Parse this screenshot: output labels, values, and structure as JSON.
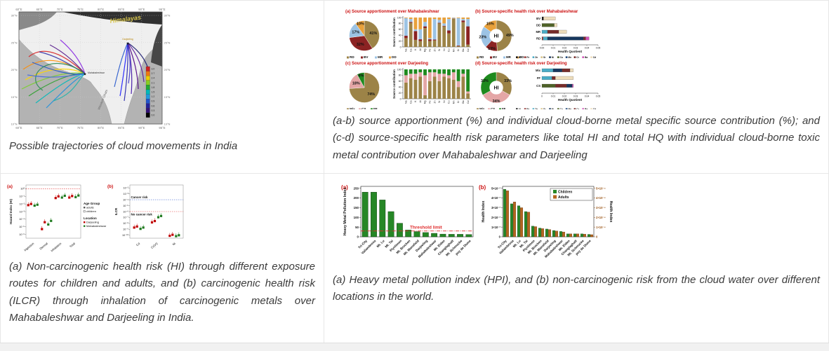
{
  "captions": {
    "map": "Possible trajectories of cloud movements in India",
    "source": "(a-b) source apportionment (%) and individual cloud-borne metal specific source contribution (%); and (c-d) source-specific health risk parameters like total HI and total HQ with individual cloud-borne toxic metal contribution over Mahabaleshwar and Darjeeling",
    "risk": "(a) Non-carcinogenic health risk (HI) through different exposure routes for children and adults, and (b) carcinogenic health risk (ILCR) through inhalation of carcinogenic metals over Mahabaleshwar and Darjeeling in India.",
    "hpi": "(a) Heavy metal pollution index (HPI), and (b) non-carcinogenic risk from the cloud water over different locations in the world."
  },
  "map": {
    "x_ticks": [
      "60°E",
      "65°E",
      "70°E",
      "75°E",
      "80°E",
      "85°E",
      "90°E",
      "95°E"
    ],
    "y_ticks": [
      "30°N",
      "25°N",
      "20°N",
      "15°N",
      "10°N"
    ],
    "himalayas_label": "Himalayas",
    "western_ghats_label": "Western Ghats",
    "sites": [
      "Darjeeling",
      "Mahabaleshwar"
    ],
    "colorbar_values": [
      "3.0",
      "2.7",
      "2.4",
      "2.1",
      "1.8",
      "1.5",
      "1.2",
      "0.9",
      "0.6",
      "0.3",
      "0.0"
    ],
    "colorbar_colors": [
      "#cc2222",
      "#ee7711",
      "#eecc00",
      "#88cc22",
      "#22aa33",
      "#00b8b8",
      "#2299dd",
      "#2255cc",
      "#222299",
      "#331177",
      "#000000"
    ],
    "trajectory_palette_west": [
      "#d62728",
      "#ff8c00",
      "#ffd700",
      "#7ccd32",
      "#2ca02c",
      "#00b8b8",
      "#1f8fdd",
      "#2255cc",
      "#3333aa",
      "#551a8b",
      "#8a2be2",
      "#2e8b57",
      "#20b2aa",
      "#4169e1"
    ],
    "trajectory_palette_east": [
      "#1a1aff",
      "#2222aa",
      "#3a0ca3",
      "#4b0082",
      "#5a189a",
      "#2255cc",
      "#191970",
      "#3f37c9"
    ]
  },
  "source_colors": {
    "RD": "#9c8347",
    "BV": "#8b2323",
    "MR": "#9cc3e4",
    "DD": "#e8a13c",
    "Mix": "#9c8347",
    "CS": "#e4a6a6",
    "FF": "#1e8a1e"
  },
  "metal_colors": {
    "Al": "#1a1a1a",
    "Fe": "#943634",
    "Zn": "#4bacc6",
    "Sr": "#d8c58a",
    "Ni": "#17375e",
    "Cu": "#4f6228",
    "Mn": "#1f497d",
    "Cr": "#772c2a",
    "Ba": "#d155b8",
    "Cd": "#eeddbb"
  },
  "chart_data": [
    {
      "id": "src-a-pie",
      "type": "pie",
      "title": "(a) Source apportionment over Mahabaleshwar",
      "labels": [
        "RD",
        "BV",
        "MR",
        "DD"
      ],
      "values": [
        41,
        32,
        17,
        10
      ]
    },
    {
      "id": "src-a-bars",
      "type": "bar",
      "stacked": true,
      "ylabel": "Source contribution",
      "ylim": [
        0,
        100
      ],
      "yticks": [
        0,
        20,
        40,
        60,
        80,
        100
      ],
      "categories": [
        "Na",
        "Ca",
        "K",
        "Al",
        "Mg",
        "Fe",
        "Zn",
        "Sr",
        "Ni",
        "Cu",
        "Mn",
        "Cr",
        "Ba",
        "Cd"
      ],
      "series": [
        {
          "name": "RD",
          "values": [
            30,
            82,
            24,
            20,
            64,
            20,
            22,
            80,
            70,
            46,
            96,
            3,
            84,
            8
          ]
        },
        {
          "name": "BV",
          "values": [
            8,
            3,
            30,
            6,
            6,
            6,
            3,
            2,
            2,
            10,
            1,
            2,
            6,
            62
          ]
        },
        {
          "name": "MR",
          "values": [
            60,
            10,
            6,
            34,
            15,
            4,
            70,
            10,
            8,
            39,
            2,
            93,
            5,
            25
          ]
        },
        {
          "name": "DD",
          "values": [
            2,
            5,
            40,
            40,
            15,
            70,
            5,
            8,
            20,
            5,
            1,
            2,
            5,
            5
          ]
        }
      ]
    },
    {
      "id": "src-b-donut",
      "type": "pie",
      "donut": true,
      "center_label": "HI",
      "title": "(b) Source-specific health risk over Mahabaleshwar",
      "labels": [
        "RD",
        "BV",
        "MR",
        "DD"
      ],
      "values": [
        49,
        13,
        23,
        15
      ]
    },
    {
      "id": "src-b-hq",
      "type": "bar",
      "horizontal": true,
      "stacked": true,
      "xlabel": "Health Quotient",
      "xlim": [
        0,
        0.05
      ],
      "xticks": [
        "0.00",
        "0.01",
        "0.02",
        "0.03",
        "0.04",
        "0.05"
      ],
      "legend": [
        "Al",
        "Fe",
        "Zn",
        "Sr",
        "Ni",
        "Cu",
        "Mn",
        "Cr",
        "Ba",
        "Cd"
      ],
      "rows": [
        {
          "label": "BV",
          "segments": [
            [
              "Al",
              0.0015
            ],
            [
              "Cd",
              0.0105
            ]
          ]
        },
        {
          "label": "DD",
          "segments": [
            [
              "Cu",
              0.011
            ],
            [
              "Cd",
              0.0025
            ]
          ]
        },
        {
          "label": "MR",
          "segments": [
            [
              "Zn",
              0.005
            ],
            [
              "Cr",
              0.01
            ],
            [
              "Cd",
              0.007
            ]
          ]
        },
        {
          "label": "RD",
          "segments": [
            [
              "Fe",
              0.001
            ],
            [
              "Zn",
              0.004
            ],
            [
              "Ni",
              0.032
            ],
            [
              "Cr",
              0.002
            ],
            [
              "Ba",
              0.003
            ]
          ]
        }
      ]
    },
    {
      "id": "src-c-pie",
      "type": "pie",
      "title": "(c) Source apportionment over Darjeeling",
      "labels": [
        "Mix",
        "CS",
        "FF"
      ],
      "values": [
        74,
        18,
        8
      ]
    },
    {
      "id": "src-c-bars",
      "type": "bar",
      "stacked": true,
      "ylabel": "Source contribution",
      "ylim": [
        0,
        100
      ],
      "yticks": [
        0,
        20,
        40,
        60,
        80,
        100
      ],
      "categories": [
        "Na",
        "Ca",
        "K",
        "Al",
        "Mg",
        "Fe",
        "Zn",
        "Sr",
        "Ni",
        "Cu",
        "Mn",
        "Cr",
        "Ba",
        "Cd"
      ],
      "series": [
        {
          "name": "Mix",
          "values": [
            55,
            70,
            65,
            75,
            12,
            60,
            75,
            60,
            75,
            70,
            65,
            40,
            75,
            18
          ]
        },
        {
          "name": "CS",
          "values": [
            25,
            15,
            20,
            15,
            68,
            30,
            15,
            25,
            10,
            10,
            25,
            20,
            10,
            7
          ]
        },
        {
          "name": "FF",
          "values": [
            20,
            15,
            15,
            10,
            20,
            10,
            10,
            15,
            15,
            20,
            10,
            40,
            15,
            75
          ]
        }
      ]
    },
    {
      "id": "src-d-donut",
      "type": "pie",
      "donut": true,
      "center_label": "HI",
      "title": "(d) Source-specific health risk over Darjeeling",
      "labels": [
        "Mix",
        "CS",
        "FF"
      ],
      "values": [
        33,
        34,
        33
      ]
    },
    {
      "id": "src-d-hq",
      "type": "bar",
      "horizontal": true,
      "stacked": true,
      "xlabel": "Health Quotient",
      "xlim": [
        0,
        0.05
      ],
      "xticks": [
        "0",
        "0.01",
        "0.02",
        "0.03",
        "0.04",
        "0.05"
      ],
      "legend": [
        "Al",
        "Fe",
        "Zn",
        "Sr",
        "Ni",
        "Cu",
        "Mn",
        "Cr",
        "Ba",
        "Cd"
      ],
      "rows": [
        {
          "label": "Mix",
          "segments": [
            [
              "Zn",
              0.01
            ],
            [
              "Ni",
              0.008
            ],
            [
              "Cr",
              0.007
            ],
            [
              "Cd",
              0.003
            ]
          ]
        },
        {
          "label": "FF",
          "segments": [
            [
              "Zn",
              0.009
            ],
            [
              "Cr",
              0.003
            ],
            [
              "Cd",
              0.016
            ]
          ]
        },
        {
          "label": "CS",
          "segments": [
            [
              "Cu",
              0.012
            ],
            [
              "Cr",
              0.01
            ],
            [
              "Ni",
              0.005
            ],
            [
              "Ba",
              0.001
            ]
          ]
        }
      ]
    },
    {
      "id": "risk-a",
      "type": "scatter",
      "panel": "(a)",
      "ylabel": "Hazard Index (HI)",
      "yticks": [
        "10⁰",
        "10⁻¹",
        "10⁻²",
        "10⁻³",
        "10⁻⁴",
        "10⁻⁵",
        "10⁻⁶"
      ],
      "categories": [
        "Ingestion",
        "Dermal",
        "Inhalation",
        "Total"
      ],
      "threshold_line": "10⁰",
      "series": [
        {
          "name": "Darjeeling adults",
          "color": "#c00000",
          "values": [
            0.007,
            5e-06,
            0.06,
            0.07
          ]
        },
        {
          "name": "Darjeeling children",
          "color": "#c00000",
          "values": [
            0.01,
            4e-05,
            0.1,
            0.11
          ]
        },
        {
          "name": "Mahabaleshwar adults",
          "color": "#1e7a1e",
          "values": [
            0.006,
            2e-05,
            0.07,
            0.08
          ]
        },
        {
          "name": "Mahabaleshwar children",
          "color": "#1e7a1e",
          "values": [
            0.008,
            6e-05,
            0.12,
            0.13
          ]
        }
      ],
      "legend": {
        "age_title": "Age Group",
        "age_items": [
          "adults",
          "children"
        ],
        "loc_title": "Location",
        "loc_items": [
          "Darjeeling",
          "Mahabaleshwar"
        ]
      }
    },
    {
      "id": "risk-b",
      "type": "scatter",
      "panel": "(b)",
      "ylabel": "ILCR",
      "yticks": [
        "10⁻²",
        "10⁻³",
        "10⁻⁴",
        "10⁻⁵",
        "10⁻⁶",
        "10⁻⁷",
        "10⁻⁸",
        "10⁻⁹",
        "10⁻¹⁰"
      ],
      "categories": [
        "Cd",
        "Cr(VI)",
        "Ni"
      ],
      "annotations": [
        "Cancer risk",
        "No cancer risk"
      ],
      "cancer_line": "10⁻⁴",
      "no_cancer_line": "10⁻⁶",
      "series": [
        {
          "name": "Darjeeling adults",
          "color": "#c00000",
          "values": [
            2e-09,
            1.5e-08,
            8e-11
          ]
        },
        {
          "name": "Darjeeling children",
          "color": "#c00000",
          "values": [
            3e-09,
            2.5e-08,
            1.2e-10
          ]
        },
        {
          "name": "Mahabaleshwar adults",
          "color": "#1e7a1e",
          "values": [
            1.2e-09,
            1.1e-07,
            7e-11
          ]
        },
        {
          "name": "Mahabaleshwar children",
          "color": "#1e7a1e",
          "values": [
            2e-09,
            1.8e-07,
            1e-10
          ]
        }
      ]
    },
    {
      "id": "hpi-a",
      "type": "bar",
      "panel": "(a)",
      "ylabel": "Heavy Metal Pollution Index",
      "yticks": [
        0,
        50,
        100,
        150,
        200,
        250
      ],
      "ylim": [
        0,
        260
      ],
      "threshold": 30,
      "threshold_label": "Threshold limit",
      "bar_color": "#268726",
      "categories": [
        "Tri-City",
        "Vallambrosa",
        "Mt. Lu",
        "Mt. Tai",
        "Plynlimon",
        "Mt. Brocken",
        "Mt. Mansfield",
        "Darjeeling",
        "Mahabaleshwar",
        "Mt. Elden",
        "Changlaghatt",
        "Mt. Schmucke",
        "puy de Dome"
      ],
      "values": [
        230,
        230,
        190,
        130,
        70,
        35,
        27,
        22,
        18,
        14,
        13,
        13,
        12
      ]
    },
    {
      "id": "hpi-b",
      "type": "bar",
      "grouped": true,
      "panel": "(b)",
      "ylabel_left": "Health Index",
      "ylabel_right": "Health Index",
      "yticks_left": [
        "0",
        "1×10⁻²",
        "2×10⁻²",
        "3×10⁻²",
        "4×10⁻²",
        "5×10⁻²"
      ],
      "yticks_right": [
        "0",
        "1×10⁻⁴",
        "2×10⁻⁴",
        "3×10⁻⁴",
        "4×10⁻⁴",
        "5×10⁻⁴"
      ],
      "legend": [
        {
          "label": "Children",
          "color": "#268726"
        },
        {
          "label": "Adults",
          "color": "#b4651e"
        }
      ],
      "categories": [
        "Tri-City",
        "Vallambrosa",
        "Mt. Lu",
        "Mt. Tai",
        "Plynlimon",
        "Mt. Brocken",
        "Mt. Mansfield",
        "Darjeeling",
        "Mahabaleshwar",
        "Mt. Elden",
        "Changlaghatt",
        "Mt. Schmucke",
        "puy de Dome"
      ],
      "series": [
        {
          "name": "Children",
          "scale": "left",
          "values": [
            0.049,
            0.034,
            0.032,
            0.026,
            0.011,
            0.009,
            0.008,
            0.0065,
            0.0055,
            0.003,
            0.003,
            0.003,
            0.0025
          ]
        },
        {
          "name": "Adults",
          "scale": "right",
          "values": [
            0.000475,
            0.00036,
            0.0003,
            0.000255,
            0.000105,
            8.5e-05,
            7.5e-05,
            6e-05,
            5e-05,
            3e-05,
            3e-05,
            2.8e-05,
            2.2e-05
          ]
        }
      ]
    }
  ]
}
